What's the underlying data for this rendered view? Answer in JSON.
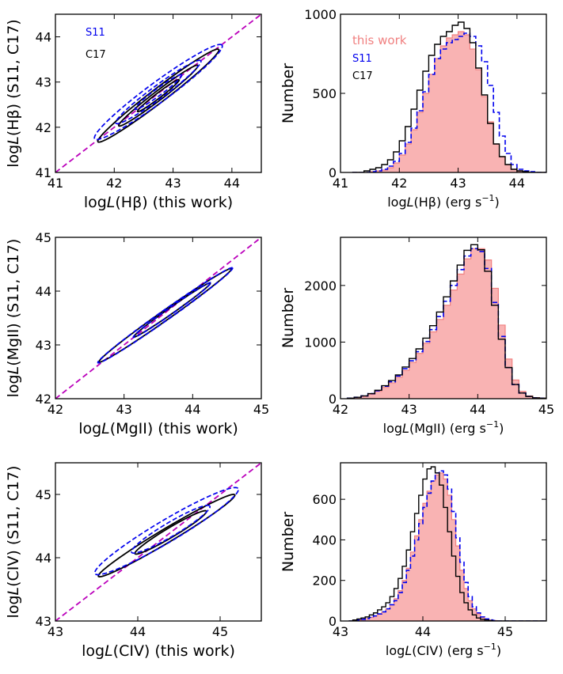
{
  "colors": {
    "this_work": "#f08080",
    "this_work_fill": "#f9b3b3",
    "s11": "#0000ee",
    "c17": "#000000",
    "diagonal": "#bb00bb"
  },
  "chart_data": [
    {
      "id": "hb-scatter",
      "type": "contour",
      "xlabel_prefix": "log",
      "xlabel_italic": "L",
      "xlabel_suffix": "(Hβ) (this work)",
      "ylabel_prefix": "log",
      "ylabel_italic": "L",
      "ylabel_suffix": "(Hβ) (S11, C17)",
      "xlim": [
        41,
        44.5
      ],
      "ylim": [
        41,
        44.5
      ],
      "xticks": [
        41,
        42,
        43,
        44
      ],
      "yticks": [
        41,
        42,
        43,
        44
      ],
      "legend": [
        {
          "label": "S11",
          "color": "#0000ee"
        },
        {
          "label": "C17",
          "color": "#000000"
        }
      ],
      "diagonal": [
        [
          41,
          41
        ],
        [
          44.5,
          44.5
        ]
      ],
      "ellipses": [
        {
          "series": "C17",
          "cx": 42.75,
          "cy": 42.7,
          "a": 1.45,
          "b": 0.14,
          "angle": 45
        },
        {
          "series": "C17",
          "cx": 42.75,
          "cy": 42.7,
          "a": 0.95,
          "b": 0.09,
          "angle": 45
        },
        {
          "series": "C17",
          "cx": 42.75,
          "cy": 42.7,
          "a": 0.5,
          "b": 0.05,
          "angle": 45
        },
        {
          "series": "S11",
          "cx": 42.75,
          "cy": 42.78,
          "a": 1.5,
          "b": 0.2,
          "angle": 44
        },
        {
          "series": "S11",
          "cx": 42.75,
          "cy": 42.78,
          "a": 1.0,
          "b": 0.13,
          "angle": 44
        },
        {
          "series": "S11",
          "cx": 42.75,
          "cy": 42.78,
          "a": 0.55,
          "b": 0.07,
          "angle": 44
        }
      ]
    },
    {
      "id": "hb-hist",
      "type": "histogram",
      "xlabel_prefix": "log",
      "xlabel_italic": "L",
      "xlabel_suffix": "(Hβ) (erg s",
      "xlabel_sup": "−1",
      "xlabel_end": ")",
      "ylabel": "Number",
      "xlim": [
        41,
        44.5
      ],
      "ylim": [
        0,
        1000
      ],
      "xticks": [
        41,
        42,
        43,
        44
      ],
      "yticks": [
        0,
        500,
        1000
      ],
      "legend": [
        {
          "label": "this work",
          "color": "#f08080"
        },
        {
          "label": "S11",
          "color": "#0000ee"
        },
        {
          "label": "C17",
          "color": "#000000"
        }
      ],
      "bin_start": 41.2,
      "bin_width": 0.1,
      "series": [
        {
          "name": "this work",
          "values": [
            0,
            0,
            0,
            5,
            10,
            15,
            30,
            60,
            110,
            180,
            270,
            380,
            500,
            620,
            720,
            800,
            850,
            870,
            890,
            870,
            780,
            650,
            480,
            320,
            180,
            100,
            50,
            20,
            10,
            5,
            0,
            0,
            0
          ]
        },
        {
          "name": "S11",
          "values": [
            0,
            0,
            0,
            5,
            10,
            20,
            40,
            70,
            120,
            190,
            280,
            390,
            510,
            620,
            720,
            780,
            820,
            840,
            860,
            880,
            860,
            800,
            700,
            550,
            380,
            230,
            120,
            50,
            20,
            10,
            5,
            0,
            0
          ]
        },
        {
          "name": "C17",
          "values": [
            0,
            0,
            10,
            20,
            30,
            50,
            80,
            130,
            200,
            290,
            400,
            520,
            640,
            740,
            810,
            860,
            890,
            930,
            950,
            910,
            820,
            660,
            490,
            310,
            180,
            100,
            50,
            20,
            10,
            5,
            0,
            0,
            0
          ]
        }
      ]
    },
    {
      "id": "mg-scatter",
      "type": "contour",
      "xlabel_prefix": "log",
      "xlabel_italic": "L",
      "xlabel_suffix": "(MgII) (this work)",
      "ylabel_prefix": "log",
      "ylabel_italic": "L",
      "ylabel_suffix": "(MgII) (S11, C17)",
      "xlim": [
        42,
        45
      ],
      "ylim": [
        42,
        45
      ],
      "xticks": [
        42,
        43,
        44,
        45
      ],
      "yticks": [
        42,
        43,
        44,
        45
      ],
      "legend": [],
      "diagonal": [
        [
          42,
          42
        ],
        [
          45,
          45
        ]
      ],
      "ellipses": [
        {
          "series": "C17",
          "cx": 43.6,
          "cy": 43.55,
          "a": 1.3,
          "b": 0.08,
          "angle": 42
        },
        {
          "series": "C17",
          "cx": 43.7,
          "cy": 43.65,
          "a": 0.75,
          "b": 0.05,
          "angle": 42
        },
        {
          "series": "S11",
          "cx": 43.6,
          "cy": 43.55,
          "a": 1.32,
          "b": 0.085,
          "angle": 42
        },
        {
          "series": "S11",
          "cx": 43.7,
          "cy": 43.65,
          "a": 0.76,
          "b": 0.055,
          "angle": 42
        }
      ]
    },
    {
      "id": "mg-hist",
      "type": "histogram",
      "xlabel_prefix": "log",
      "xlabel_italic": "L",
      "xlabel_suffix": "(MgII) (erg s",
      "xlabel_sup": "−1",
      "xlabel_end": ")",
      "ylabel": "Number",
      "xlim": [
        42,
        45
      ],
      "ylim": [
        0,
        2850
      ],
      "xticks": [
        42,
        43,
        44,
        45
      ],
      "yticks": [
        0,
        1000,
        2000
      ],
      "legend": [],
      "bin_start": 42.1,
      "bin_width": 0.1,
      "series": [
        {
          "name": "this work",
          "values": [
            10,
            20,
            40,
            80,
            130,
            200,
            280,
            380,
            500,
            640,
            800,
            980,
            1180,
            1400,
            1650,
            1920,
            2200,
            2470,
            2650,
            2650,
            2450,
            1950,
            1300,
            700,
            330,
            130,
            50,
            20,
            10
          ]
        },
        {
          "name": "S11",
          "values": [
            10,
            25,
            50,
            90,
            140,
            220,
            300,
            400,
            530,
            670,
            830,
            1010,
            1220,
            1450,
            1720,
            2000,
            2280,
            2520,
            2650,
            2600,
            2300,
            1700,
            1100,
            550,
            250,
            100,
            40,
            15,
            10
          ]
        },
        {
          "name": "C17",
          "values": [
            10,
            25,
            50,
            90,
            150,
            230,
            320,
            420,
            560,
            710,
            880,
            1070,
            1290,
            1530,
            1800,
            2080,
            2360,
            2620,
            2720,
            2630,
            2250,
            1650,
            1050,
            550,
            250,
            100,
            40,
            15,
            10
          ]
        }
      ]
    },
    {
      "id": "civ-scatter",
      "type": "contour",
      "xlabel_prefix": "log",
      "xlabel_italic": "L",
      "xlabel_suffix": "(CIV) (this work)",
      "ylabel_prefix": "log",
      "ylabel_italic": "L",
      "ylabel_suffix": "(CIV) (S11, C17)",
      "xlim": [
        43,
        45.5
      ],
      "ylim": [
        43,
        45.5
      ],
      "xticks": [
        43,
        44,
        45
      ],
      "yticks": [
        43,
        44,
        45
      ],
      "legend": [],
      "diagonal": [
        [
          43,
          43
        ],
        [
          45.5,
          45.5
        ]
      ],
      "ellipses": [
        {
          "series": "C17",
          "cx": 44.35,
          "cy": 44.35,
          "a": 1.05,
          "b": 0.1,
          "angle": 38
        },
        {
          "series": "C17",
          "cx": 44.4,
          "cy": 44.4,
          "a": 0.55,
          "b": 0.07,
          "angle": 38
        },
        {
          "series": "S11",
          "cx": 44.35,
          "cy": 44.42,
          "a": 1.1,
          "b": 0.16,
          "angle": 38
        },
        {
          "series": "S11",
          "cx": 44.4,
          "cy": 44.45,
          "a": 0.6,
          "b": 0.1,
          "angle": 38
        }
      ]
    },
    {
      "id": "civ-hist",
      "type": "histogram",
      "xlabel_prefix": "log",
      "xlabel_italic": "L",
      "xlabel_suffix": "(CIV) (erg s",
      "xlabel_sup": "−1",
      "xlabel_end": ")",
      "ylabel": "Number",
      "xlim": [
        43,
        45.5
      ],
      "ylim": [
        0,
        780
      ],
      "xticks": [
        43,
        44,
        45
      ],
      "yticks": [
        0,
        200,
        400,
        600
      ],
      "legend": [],
      "bin_start": 43.1,
      "bin_width": 0.05,
      "series": [
        {
          "name": "this work",
          "values": [
            0,
            2,
            5,
            8,
            12,
            18,
            25,
            35,
            45,
            60,
            80,
            110,
            150,
            200,
            260,
            340,
            420,
            500,
            580,
            640,
            690,
            720,
            730,
            700,
            620,
            500,
            370,
            250,
            160,
            100,
            60,
            35,
            20,
            10,
            5,
            2,
            0,
            0,
            0,
            0,
            0,
            0,
            0,
            0,
            0,
            0,
            0,
            0
          ]
        },
        {
          "name": "S11",
          "values": [
            0,
            2,
            5,
            8,
            12,
            18,
            25,
            35,
            45,
            60,
            80,
            100,
            140,
            190,
            250,
            320,
            400,
            480,
            560,
            630,
            690,
            730,
            740,
            720,
            650,
            540,
            410,
            290,
            190,
            120,
            70,
            40,
            20,
            10,
            5,
            2,
            0,
            0,
            0,
            0,
            0,
            0,
            0,
            0,
            0,
            0,
            0,
            0
          ]
        },
        {
          "name": "C17",
          "values": [
            0,
            5,
            10,
            15,
            20,
            30,
            40,
            55,
            70,
            90,
            120,
            160,
            210,
            270,
            350,
            440,
            530,
            620,
            700,
            750,
            760,
            730,
            670,
            560,
            440,
            320,
            220,
            140,
            90,
            55,
            30,
            15,
            8,
            5,
            2,
            0,
            0,
            0,
            0,
            0,
            0,
            0,
            0,
            0,
            0,
            0,
            0,
            0
          ]
        }
      ]
    }
  ]
}
